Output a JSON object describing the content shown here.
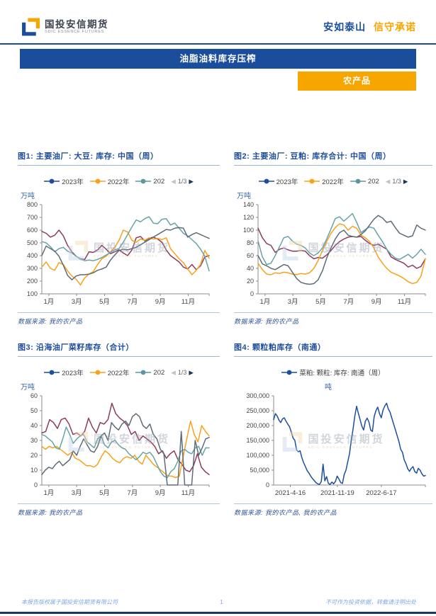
{
  "header": {
    "logo_text": "国投安信期货",
    "logo_subtext": "SDIC ESSENCE FUTURES",
    "slogan_primary": "安如泰山",
    "slogan_secondary": "信守承诺"
  },
  "banner": {
    "title": "油脂油料库存压榨",
    "category": "农产品"
  },
  "watermark": {
    "text": "国投安信期货",
    "subtext": "SDIC ESSENCE FUTURES"
  },
  "footer": {
    "left": "本报告版权属于国投安信期货有限公司",
    "page_number": "1",
    "right": "不可作为投资依据，转载请注明出处"
  },
  "colors": {
    "brand_blue": "#1A4E9D",
    "brand_orange": "#F7A600",
    "title_underline": "#9CB6D8",
    "axis_gray": "#737373",
    "pager_next": "#17375E",
    "pager_prev": "#C3C3C3"
  },
  "chart_data": [
    {
      "id": "fig1",
      "type": "line",
      "title": "图1: 主要油厂: 大豆: 库存: 中国（周）",
      "ylabel": "万吨",
      "ylim": [
        100,
        800
      ],
      "yticks": [
        100,
        200,
        300,
        400,
        500,
        600,
        700,
        800
      ],
      "xlabels": [
        "1月",
        "3月",
        "5月",
        "7月",
        "9月",
        "11月"
      ],
      "xlabel_pos": [
        0.042,
        0.208,
        0.375,
        0.542,
        0.708,
        0.875
      ],
      "grid": false,
      "legend_position": "top",
      "legend": {
        "items": [
          {
            "label": "2023年",
            "color": "#1C4F9E"
          },
          {
            "label": "2022年",
            "color": "#F9A11B"
          },
          {
            "label": "202",
            "color": "#5B97A0"
          }
        ],
        "pager": "1/3"
      },
      "margin_left": 34,
      "source": "数据来源: 我的农产品",
      "series": [
        {
          "name": "2023年",
          "color": "#8F3B5C",
          "values": [
            590,
            575,
            545,
            560,
            600,
            555,
            480,
            430,
            395,
            375,
            370,
            430,
            425,
            445,
            480,
            450,
            415,
            430,
            445,
            420,
            400,
            445,
            540,
            550,
            515,
            535,
            545,
            530,
            505,
            445,
            400,
            375,
            350,
            310,
            295,
            330,
            290,
            320,
            390,
            400
          ]
        },
        {
          "name": "2022年",
          "color": "#F9A11B",
          "values": [
            310,
            350,
            300,
            285,
            345,
            330,
            280,
            240,
            215,
            170,
            225,
            255,
            275,
            330,
            375,
            395,
            430,
            465,
            520,
            600,
            585,
            520,
            505,
            530,
            520,
            540,
            530,
            535,
            525,
            540,
            455,
            415,
            375,
            345,
            295,
            250,
            285,
            330,
            440,
            380
          ]
        },
        {
          "name": "202",
          "color": "#67A3A9",
          "values": [
            510,
            500,
            470,
            430,
            455,
            465,
            435,
            420,
            395,
            370,
            360,
            365,
            360,
            370,
            385,
            405,
            425,
            445,
            455,
            505,
            565,
            625,
            680,
            665,
            690,
            705,
            655,
            650,
            685,
            690,
            640,
            655,
            615,
            575,
            555,
            525,
            495,
            450,
            395,
            280
          ]
        },
        {
          "name": "",
          "color": "#5D6C78",
          "values": [
            400,
            475,
            455,
            435,
            395,
            325,
            245,
            210,
            240,
            250,
            250,
            255,
            265,
            285,
            295,
            310,
            365,
            405,
            440,
            450,
            445,
            455,
            465,
            485,
            505,
            525,
            545,
            565,
            585,
            605,
            600,
            615,
            620,
            615,
            545,
            565,
            580,
            565,
            550,
            535
          ]
        }
      ]
    },
    {
      "id": "fig2",
      "type": "line",
      "title": "图2: 主要油厂: 豆粕: 库存合计: 中国（周）",
      "ylabel": "万吨",
      "ylim": [
        0,
        140
      ],
      "yticks": [
        0,
        20,
        40,
        60,
        80,
        100,
        120,
        140
      ],
      "xlabels": [
        "1月",
        "3月",
        "5月",
        "7月",
        "9月",
        "11月"
      ],
      "xlabel_pos": [
        0.042,
        0.208,
        0.375,
        0.542,
        0.708,
        0.875
      ],
      "grid": false,
      "legend_position": "top",
      "legend": {
        "items": [
          {
            "label": "2023年",
            "color": "#1C4F9E"
          },
          {
            "label": "2022年",
            "color": "#F9A11B"
          },
          {
            "label": "202",
            "color": "#5B97A0"
          }
        ],
        "pager": "1/3"
      },
      "margin_left": 34,
      "source": "数据来源: 我的农产品",
      "series": [
        {
          "name": "2023年",
          "color": "#8F3B5C",
          "values": [
            103,
            88,
            79,
            76,
            65,
            70,
            72,
            69,
            67,
            67,
            68,
            67,
            60,
            55,
            57,
            56,
            61,
            68,
            76,
            82,
            86,
            89,
            90,
            89,
            90,
            84,
            79,
            76,
            78,
            74,
            70,
            58,
            54,
            51,
            48,
            42,
            45,
            40,
            43,
            55
          ]
        },
        {
          "name": "2022年",
          "color": "#F9A11B",
          "values": [
            48,
            38,
            31,
            30,
            33,
            32,
            34,
            33,
            31,
            30,
            32,
            31,
            33,
            40,
            52,
            68,
            82,
            95,
            104,
            110,
            108,
            100,
            106,
            103,
            92,
            88,
            82,
            72,
            58,
            48,
            40,
            34,
            31,
            28,
            24,
            19,
            16,
            18,
            28,
            55
          ]
        },
        {
          "name": "202",
          "color": "#67A3A9",
          "values": [
            83,
            58,
            46,
            48,
            60,
            74,
            88,
            90,
            83,
            78,
            76,
            72,
            64,
            60,
            64,
            72,
            86,
            102,
            118,
            121,
            114,
            120,
            126,
            112,
            96,
            101,
            105,
            103,
            92,
            82,
            70,
            62,
            56,
            54,
            58,
            62,
            56,
            62,
            70,
            62
          ]
        },
        {
          "name": "",
          "color": "#5D6C78",
          "values": [
            60,
            47,
            44,
            40,
            38,
            42,
            46,
            44,
            34,
            24,
            18,
            16,
            15,
            16,
            22,
            36,
            56,
            72,
            86,
            96,
            100,
            92,
            90,
            89,
            93,
            99,
            108,
            117,
            123,
            119,
            112,
            114,
            104,
            95,
            92,
            89,
            91,
            108,
            103,
            100
          ]
        }
      ]
    },
    {
      "id": "fig3",
      "type": "line",
      "title": "图3: 沿海油厂菜籽库存（合计）",
      "ylabel": "万吨",
      "ylim": [
        0,
        60
      ],
      "yticks": [
        0,
        10,
        20,
        30,
        40,
        50,
        60
      ],
      "xlabels": [
        "1月",
        "3月",
        "5月",
        "7月",
        "9月",
        "11月"
      ],
      "xlabel_pos": [
        0.042,
        0.208,
        0.375,
        0.542,
        0.708,
        0.875
      ],
      "grid": false,
      "legend_position": "top",
      "legend": {
        "items": [
          {
            "label": "2023年",
            "color": "#1C4F9E"
          },
          {
            "label": "2022年",
            "color": "#F9A11B"
          },
          {
            "label": "202",
            "color": "#5B97A0"
          }
        ],
        "pager": "1/3"
      },
      "margin_left": 34,
      "source": "数据来源: 我的农产品",
      "series": [
        {
          "name": "2023年",
          "color": "#8F3B5C",
          "values": [
            35,
            36,
            44,
            42,
            38,
            44,
            45,
            41,
            34,
            35,
            33,
            36,
            45,
            39,
            35,
            42,
            41,
            44,
            55,
            48,
            45,
            43,
            40,
            34,
            36,
            30,
            33,
            31,
            29,
            26,
            21,
            23,
            18,
            21,
            23,
            17,
            14,
            10,
            9,
            13,
            21,
            12,
            9,
            7
          ]
        },
        {
          "name": "2022年",
          "color": "#F9A11B",
          "values": [
            26,
            24,
            26,
            25,
            26,
            24,
            22,
            20,
            22,
            18,
            17,
            15,
            13,
            13,
            12,
            14,
            19,
            23,
            21,
            18,
            16,
            15,
            18,
            19,
            18,
            20,
            16,
            14,
            20,
            17,
            14,
            12,
            10,
            8,
            6,
            6,
            5,
            6,
            19,
            31,
            43,
            34,
            29,
            40,
            36,
            33
          ]
        },
        {
          "name": "202",
          "color": "#67A3A9",
          "values": [
            34,
            33,
            31,
            29,
            25,
            24,
            31,
            39,
            34,
            28,
            31,
            33,
            34,
            29,
            27,
            25,
            31,
            33,
            27,
            25,
            29,
            30,
            27,
            25,
            24,
            21,
            19,
            17,
            19,
            22,
            21,
            22,
            19,
            14,
            9,
            6,
            5,
            9,
            11,
            16,
            23,
            24,
            22,
            21,
            25,
            26,
            20,
            25,
            25
          ]
        },
        {
          "name": "",
          "color": "#5D6C78",
          "values": [
            7,
            10,
            12,
            11,
            14,
            16,
            13,
            15,
            17,
            23,
            20,
            26,
            31,
            27,
            23,
            22,
            26,
            33,
            35,
            30,
            42,
            39,
            37,
            41,
            43,
            40,
            46,
            48,
            46,
            40,
            38,
            41,
            34,
            31,
            24,
            21,
            0,
            0,
            0,
            0,
            36,
            0,
            0,
            0,
            30,
            20,
            25,
            31,
            32
          ]
        }
      ]
    },
    {
      "id": "fig4",
      "type": "line",
      "title": "图4: 颗粒粕库存（南通）",
      "ylabel": "吨",
      "ylim": [
        0,
        300000
      ],
      "yticks": [
        0,
        50000,
        100000,
        150000,
        200000,
        250000,
        300000
      ],
      "tick_format": "comma",
      "xlabels": [
        "2021-4-16",
        "2021-11-19",
        "2022-6-17"
      ],
      "xlabel_pos": [
        0.11,
        0.42,
        0.71
      ],
      "grid": false,
      "legend_position": "top",
      "legend": {
        "items": [
          {
            "label": "菜粕: 颗粒: 库存: 南通（周）",
            "color": "#1C4F9E"
          }
        ],
        "pager": null
      },
      "margin_left": 56,
      "source": "数据来源: 我的农产品, 我的农产品",
      "series": [
        {
          "name": "菜粕: 颗粒: 库存: 南通（周）",
          "color": "#1C4F9E",
          "values": [
            220000,
            240000,
            232000,
            218000,
            210000,
            222000,
            226000,
            215000,
            205000,
            196000,
            178000,
            158000,
            150000,
            118000,
            112000,
            115000,
            92000,
            75000,
            62000,
            48000,
            40000,
            30000,
            22000,
            15000,
            8000,
            4000,
            2000,
            12000,
            70000,
            14000,
            28000,
            6000,
            2000,
            10000,
            4000,
            12000,
            30000,
            20000,
            8000,
            5000,
            35000,
            50000,
            78000,
            105000,
            150000,
            188000,
            232000,
            265000,
            242000,
            220000,
            198000,
            185000,
            215000,
            225000,
            212000,
            185000,
            180000,
            230000,
            250000,
            262000,
            240000,
            226000,
            252000,
            266000,
            275000,
            256000,
            245000,
            225000,
            205000,
            186000,
            166000,
            146000,
            120000,
            110000,
            85000,
            72000,
            55000,
            46000,
            56000,
            62000,
            45000,
            40000,
            56000,
            50000,
            38000,
            30000,
            32000
          ]
        }
      ]
    }
  ]
}
